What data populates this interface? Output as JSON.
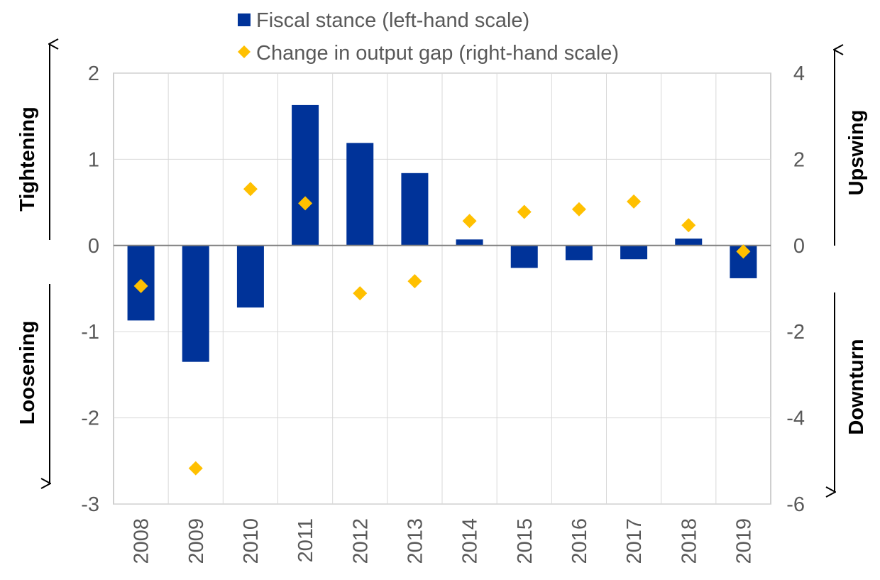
{
  "chart_data": {
    "type": "bar",
    "categories": [
      "2008",
      "2009",
      "2010",
      "2011",
      "2012",
      "2013",
      "2014",
      "2015",
      "2016",
      "2017",
      "2018",
      "2019"
    ],
    "series": [
      {
        "name": "Fiscal stance (left-hand scale)",
        "type": "bar",
        "axis": "left",
        "color": "#003399",
        "values": [
          -0.87,
          -1.35,
          -0.72,
          1.63,
          1.19,
          0.84,
          0.07,
          -0.26,
          -0.17,
          -0.16,
          0.08,
          -0.38
        ]
      },
      {
        "name": "Change in output gap (right-hand scale)",
        "type": "scatter",
        "axis": "right",
        "color": "#FFC000",
        "marker": "diamond",
        "values": [
          -0.94,
          -5.17,
          1.31,
          0.98,
          -1.11,
          -0.83,
          0.57,
          0.78,
          0.84,
          1.02,
          0.47,
          -0.14
        ]
      }
    ],
    "y_left": {
      "min": -3,
      "max": 2,
      "ticks": [
        "2",
        "1",
        "0",
        "-1",
        "-2",
        "-3"
      ]
    },
    "y_right": {
      "min": -6,
      "max": 4,
      "ticks": [
        "4",
        "2",
        "0",
        "-2",
        "-4",
        "-6"
      ]
    },
    "grid": true,
    "legend_position": "top-center",
    "annotations": {
      "left_top": "Tightening",
      "left_bottom": "Loosening",
      "right_top": "Upswing",
      "right_bottom": "Downturn"
    }
  }
}
